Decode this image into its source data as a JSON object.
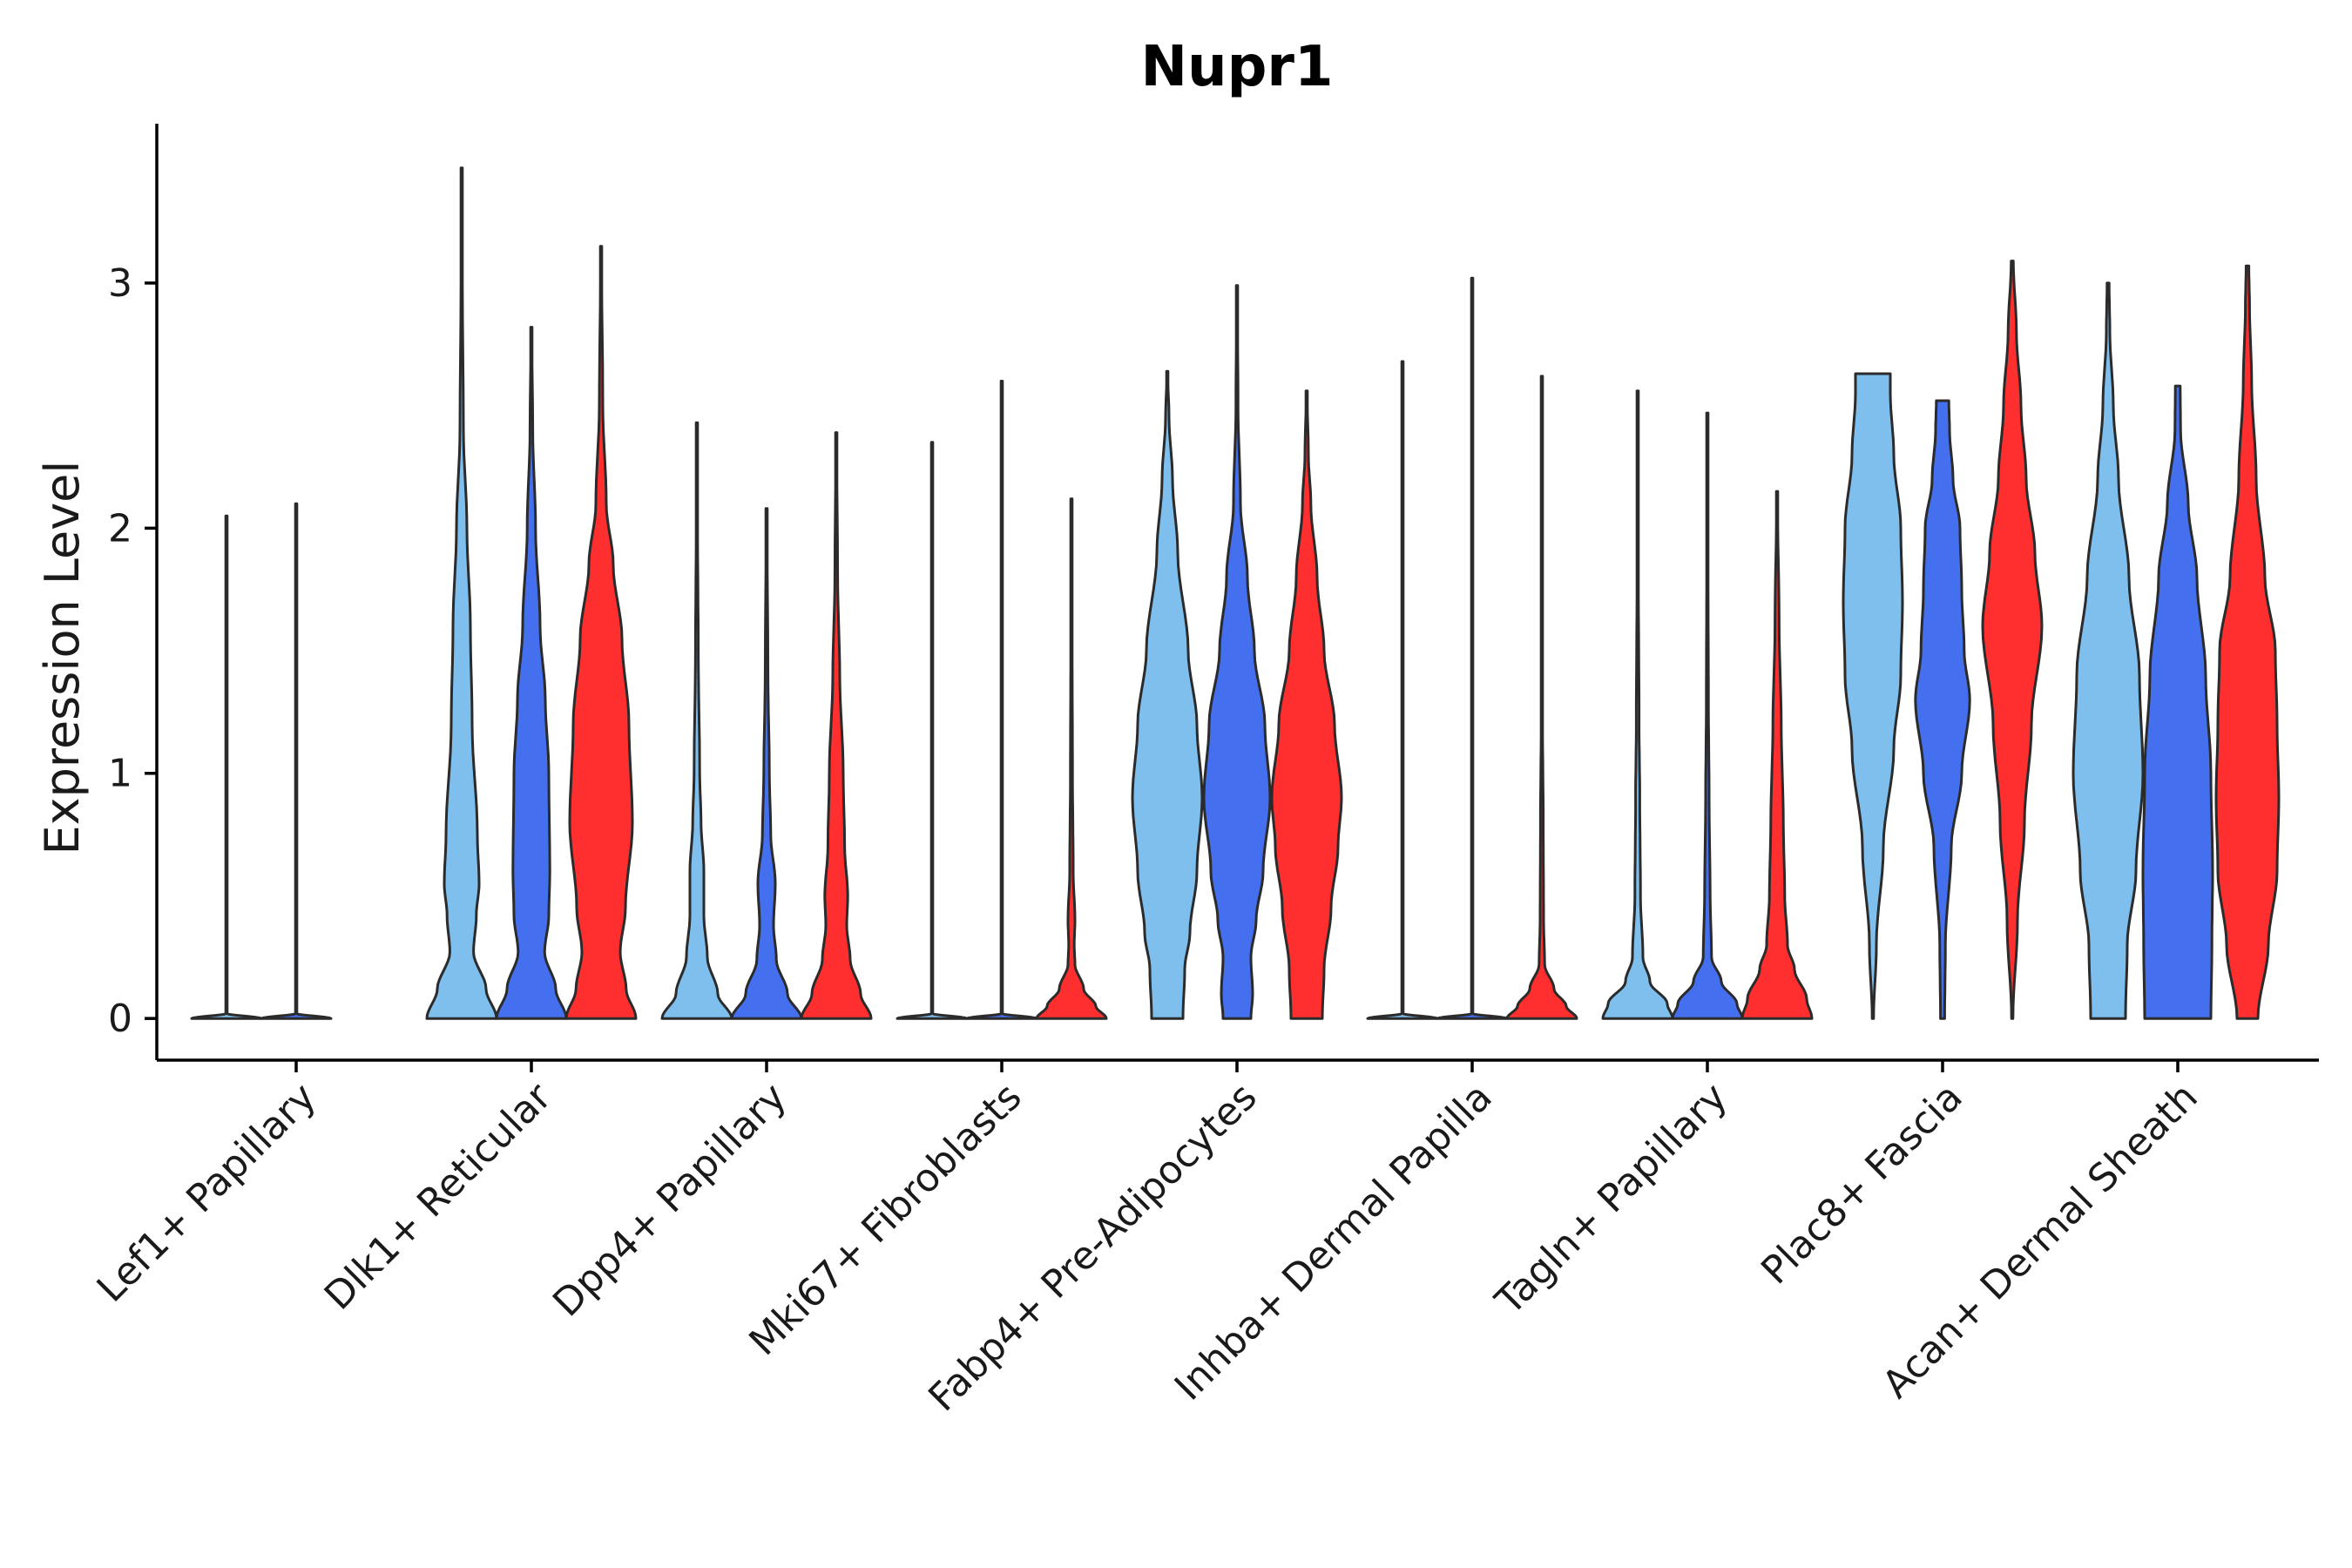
{
  "chart_data": {
    "type": "violin",
    "title": "Nupr1",
    "xlabel": "",
    "ylabel": "Expression Level",
    "ylim": [
      -0.17,
      3.65
    ],
    "yticks": [
      0,
      1,
      2,
      3
    ],
    "ytick_labels": [
      "0",
      "1",
      "2",
      "3"
    ],
    "groups_per_category": 3,
    "group_colors": [
      "#7fbfee",
      "#4470ef",
      "#ff2f2f"
    ],
    "categories": [
      "Lef1+ Papillary",
      "Dlk1+ Reticular",
      "Dpp4+ Papillary",
      "Mki67+ Fibroblasts",
      "Fabp4+ Pre-Adipocytes",
      "Inhba+ Dermal Papilla",
      "Tagln+ Papillary",
      "Plac8+ Fascia",
      "Acan+ Dermal Sheath"
    ],
    "violins": [
      {
        "category": "Lef1+ Papillary",
        "group": 0,
        "min": 0,
        "max": 2.05,
        "profile": [
          [
            0,
            1.0
          ],
          [
            0.02,
            0.005
          ],
          [
            0.3,
            0.002
          ],
          [
            2.05,
            0.002
          ]
        ]
      },
      {
        "category": "Lef1+ Papillary",
        "group": 1,
        "min": 0,
        "max": 2.1,
        "profile": [
          [
            0,
            1.0
          ],
          [
            0.02,
            0.005
          ],
          [
            0.3,
            0.002
          ],
          [
            2.1,
            0.002
          ]
        ]
      },
      {
        "category": "Dlk1+ Reticular",
        "group": 0,
        "min": 0,
        "max": 3.47,
        "profile": [
          [
            0,
            1.0
          ],
          [
            0.12,
            0.7
          ],
          [
            0.27,
            0.34
          ],
          [
            0.42,
            0.42
          ],
          [
            0.55,
            0.5
          ],
          [
            0.75,
            0.45
          ],
          [
            1.2,
            0.3
          ],
          [
            1.6,
            0.25
          ],
          [
            2.0,
            0.15
          ],
          [
            2.4,
            0.05
          ],
          [
            3.0,
            0.02
          ],
          [
            3.47,
            0.01
          ]
        ]
      },
      {
        "category": "Dlk1+ Reticular",
        "group": 1,
        "min": 0,
        "max": 2.82,
        "profile": [
          [
            0,
            1.0
          ],
          [
            0.12,
            0.7
          ],
          [
            0.27,
            0.38
          ],
          [
            0.42,
            0.5
          ],
          [
            0.6,
            0.53
          ],
          [
            1.0,
            0.5
          ],
          [
            1.3,
            0.4
          ],
          [
            1.6,
            0.25
          ],
          [
            2.0,
            0.12
          ],
          [
            2.4,
            0.04
          ],
          [
            2.82,
            0.01
          ]
        ]
      },
      {
        "category": "Dlk1+ Reticular",
        "group": 2,
        "min": 0,
        "max": 3.15,
        "profile": [
          [
            0,
            1.0
          ],
          [
            0.12,
            0.72
          ],
          [
            0.27,
            0.55
          ],
          [
            0.45,
            0.7
          ],
          [
            0.8,
            0.9
          ],
          [
            1.2,
            0.8
          ],
          [
            1.55,
            0.6
          ],
          [
            1.85,
            0.35
          ],
          [
            2.1,
            0.15
          ],
          [
            2.5,
            0.05
          ],
          [
            3.15,
            0.01
          ]
        ]
      },
      {
        "category": "Dpp4+ Papillary",
        "group": 0,
        "min": 0,
        "max": 2.43,
        "profile": [
          [
            0,
            1.0
          ],
          [
            0.1,
            0.6
          ],
          [
            0.25,
            0.3
          ],
          [
            0.42,
            0.2
          ],
          [
            0.6,
            0.2
          ],
          [
            0.8,
            0.12
          ],
          [
            1.0,
            0.08
          ],
          [
            1.5,
            0.04
          ],
          [
            2.0,
            0.02
          ],
          [
            2.43,
            0.01
          ]
        ]
      },
      {
        "category": "Dpp4+ Papillary",
        "group": 1,
        "min": 0,
        "max": 2.08,
        "profile": [
          [
            0,
            1.0
          ],
          [
            0.1,
            0.6
          ],
          [
            0.24,
            0.28
          ],
          [
            0.38,
            0.2
          ],
          [
            0.55,
            0.25
          ],
          [
            0.75,
            0.12
          ],
          [
            1.0,
            0.08
          ],
          [
            1.4,
            0.04
          ],
          [
            2.08,
            0.01
          ]
        ]
      },
      {
        "category": "Dpp4+ Papillary",
        "group": 2,
        "min": 0,
        "max": 2.39,
        "profile": [
          [
            0,
            1.0
          ],
          [
            0.1,
            0.7
          ],
          [
            0.24,
            0.4
          ],
          [
            0.38,
            0.3
          ],
          [
            0.5,
            0.33
          ],
          [
            0.7,
            0.24
          ],
          [
            1.0,
            0.2
          ],
          [
            1.4,
            0.1
          ],
          [
            1.8,
            0.04
          ],
          [
            2.39,
            0.01
          ]
        ]
      },
      {
        "category": "Mki67+ Fibroblasts",
        "group": 0,
        "min": 0,
        "max": 2.35,
        "profile": [
          [
            0,
            1.0
          ],
          [
            0.02,
            0.005
          ],
          [
            0.3,
            0.002
          ],
          [
            2.35,
            0.002
          ]
        ]
      },
      {
        "category": "Mki67+ Fibroblasts",
        "group": 1,
        "min": 0,
        "max": 2.6,
        "profile": [
          [
            0,
            1.0
          ],
          [
            0.02,
            0.005
          ],
          [
            0.3,
            0.002
          ],
          [
            2.6,
            0.002
          ]
        ]
      },
      {
        "category": "Mki67+ Fibroblasts",
        "group": 2,
        "min": 0,
        "max": 2.12,
        "profile": [
          [
            0,
            1.0
          ],
          [
            0.05,
            0.7
          ],
          [
            0.12,
            0.35
          ],
          [
            0.22,
            0.1
          ],
          [
            0.3,
            0.08
          ],
          [
            0.4,
            0.1
          ],
          [
            0.6,
            0.05
          ],
          [
            1.0,
            0.03
          ],
          [
            1.5,
            0.02
          ],
          [
            2.12,
            0.01
          ]
        ]
      },
      {
        "category": "Fabp4+ Pre-Adipocytes",
        "group": 0,
        "min": 0,
        "max": 2.64,
        "profile": [
          [
            0,
            0.45
          ],
          [
            0.2,
            0.5
          ],
          [
            0.35,
            0.65
          ],
          [
            0.6,
            0.85
          ],
          [
            0.9,
            1.0
          ],
          [
            1.2,
            0.85
          ],
          [
            1.5,
            0.6
          ],
          [
            1.9,
            0.3
          ],
          [
            2.2,
            0.15
          ],
          [
            2.45,
            0.05
          ],
          [
            2.64,
            0.01
          ]
        ]
      },
      {
        "category": "Fabp4+ Pre-Adipocytes",
        "group": 1,
        "min": 0,
        "max": 2.99,
        "profile": [
          [
            0,
            0.4
          ],
          [
            0.1,
            0.45
          ],
          [
            0.25,
            0.4
          ],
          [
            0.4,
            0.55
          ],
          [
            0.6,
            0.75
          ],
          [
            0.9,
            0.95
          ],
          [
            1.2,
            0.8
          ],
          [
            1.5,
            0.5
          ],
          [
            1.8,
            0.3
          ],
          [
            2.1,
            0.1
          ],
          [
            2.5,
            0.03
          ],
          [
            2.99,
            0.01
          ]
        ]
      },
      {
        "category": "Fabp4+ Pre-Adipocytes",
        "group": 2,
        "min": 0,
        "max": 2.56,
        "profile": [
          [
            0,
            0.45
          ],
          [
            0.2,
            0.5
          ],
          [
            0.45,
            0.7
          ],
          [
            0.7,
            0.9
          ],
          [
            0.9,
            1.0
          ],
          [
            1.2,
            0.8
          ],
          [
            1.5,
            0.5
          ],
          [
            1.8,
            0.3
          ],
          [
            2.1,
            0.12
          ],
          [
            2.3,
            0.05
          ],
          [
            2.56,
            0.01
          ]
        ]
      },
      {
        "category": "Inhba+ Dermal Papilla",
        "group": 0,
        "min": 0,
        "max": 2.68,
        "profile": [
          [
            0,
            1.0
          ],
          [
            0.02,
            0.005
          ],
          [
            0.3,
            0.002
          ],
          [
            2.68,
            0.002
          ]
        ]
      },
      {
        "category": "Inhba+ Dermal Papilla",
        "group": 1,
        "min": 0,
        "max": 3.02,
        "profile": [
          [
            0,
            1.0
          ],
          [
            0.02,
            0.005
          ],
          [
            0.3,
            0.002
          ],
          [
            3.02,
            0.002
          ]
        ]
      },
      {
        "category": "Inhba+ Dermal Papilla",
        "group": 2,
        "min": 0,
        "max": 2.62,
        "profile": [
          [
            0,
            1.0
          ],
          [
            0.05,
            0.7
          ],
          [
            0.12,
            0.35
          ],
          [
            0.22,
            0.08
          ],
          [
            0.4,
            0.05
          ],
          [
            0.8,
            0.04
          ],
          [
            1.2,
            0.02
          ],
          [
            2.62,
            0.01
          ]
        ]
      },
      {
        "category": "Tagln+ Papillary",
        "group": 0,
        "min": 0,
        "max": 2.56,
        "profile": [
          [
            0,
            1.0
          ],
          [
            0.06,
            0.85
          ],
          [
            0.15,
            0.35
          ],
          [
            0.25,
            0.15
          ],
          [
            0.5,
            0.08
          ],
          [
            0.9,
            0.06
          ],
          [
            1.2,
            0.04
          ],
          [
            1.8,
            0.02
          ],
          [
            2.56,
            0.01
          ]
        ]
      },
      {
        "category": "Tagln+ Papillary",
        "group": 1,
        "min": 0,
        "max": 2.47,
        "profile": [
          [
            0,
            1.0
          ],
          [
            0.06,
            0.85
          ],
          [
            0.15,
            0.4
          ],
          [
            0.25,
            0.12
          ],
          [
            0.5,
            0.08
          ],
          [
            0.9,
            0.05
          ],
          [
            1.3,
            0.03
          ],
          [
            1.8,
            0.02
          ],
          [
            2.47,
            0.01
          ]
        ]
      },
      {
        "category": "Tagln+ Papillary",
        "group": 2,
        "min": 0,
        "max": 2.15,
        "profile": [
          [
            0,
            1.0
          ],
          [
            0.08,
            0.85
          ],
          [
            0.2,
            0.5
          ],
          [
            0.3,
            0.3
          ],
          [
            0.5,
            0.22
          ],
          [
            0.8,
            0.18
          ],
          [
            1.2,
            0.12
          ],
          [
            1.6,
            0.06
          ],
          [
            2.15,
            0.01
          ]
        ]
      },
      {
        "category": "Plac8+ Fascia",
        "group": 0,
        "min": 0,
        "max": 2.63,
        "profile": [
          [
            0,
            0.02
          ],
          [
            0.3,
            0.1
          ],
          [
            0.7,
            0.3
          ],
          [
            1.1,
            0.6
          ],
          [
            1.4,
            0.8
          ],
          [
            1.7,
            0.85
          ],
          [
            2.0,
            0.8
          ],
          [
            2.3,
            0.6
          ],
          [
            2.55,
            0.5
          ],
          [
            2.63,
            0.5
          ]
        ]
      },
      {
        "category": "Plac8+ Fascia",
        "group": 1,
        "min": 0,
        "max": 2.52,
        "profile": [
          [
            0,
            0.06
          ],
          [
            0.3,
            0.08
          ],
          [
            0.7,
            0.25
          ],
          [
            1.0,
            0.55
          ],
          [
            1.3,
            0.78
          ],
          [
            1.5,
            0.62
          ],
          [
            1.75,
            0.55
          ],
          [
            2.0,
            0.5
          ],
          [
            2.2,
            0.3
          ],
          [
            2.4,
            0.2
          ],
          [
            2.52,
            0.18
          ]
        ]
      },
      {
        "category": "Plac8+ Fascia",
        "group": 2,
        "min": 0,
        "max": 3.09,
        "profile": [
          [
            0,
            0.02
          ],
          [
            0.4,
            0.15
          ],
          [
            0.8,
            0.35
          ],
          [
            1.2,
            0.55
          ],
          [
            1.6,
            0.85
          ],
          [
            1.9,
            0.65
          ],
          [
            2.2,
            0.4
          ],
          [
            2.5,
            0.25
          ],
          [
            2.8,
            0.12
          ],
          [
            3.09,
            0.03
          ]
        ]
      },
      {
        "category": "Acan+ Dermal Sheath",
        "group": 0,
        "min": 0,
        "max": 3.0,
        "profile": [
          [
            0,
            0.5
          ],
          [
            0.3,
            0.55
          ],
          [
            0.6,
            0.8
          ],
          [
            1.0,
            1.0
          ],
          [
            1.4,
            0.9
          ],
          [
            1.8,
            0.6
          ],
          [
            2.2,
            0.3
          ],
          [
            2.5,
            0.15
          ],
          [
            2.8,
            0.05
          ],
          [
            3.0,
            0.03
          ]
        ]
      },
      {
        "category": "Acan+ Dermal Sheath",
        "group": 1,
        "min": 0,
        "max": 2.58,
        "profile": [
          [
            0,
            0.95
          ],
          [
            0.3,
            0.98
          ],
          [
            0.6,
            1.0
          ],
          [
            1.0,
            0.95
          ],
          [
            1.4,
            0.8
          ],
          [
            1.8,
            0.55
          ],
          [
            2.1,
            0.3
          ],
          [
            2.4,
            0.08
          ],
          [
            2.58,
            0.07
          ]
        ]
      },
      {
        "category": "Acan+ Dermal Sheath",
        "group": 2,
        "min": 0,
        "max": 3.07,
        "profile": [
          [
            0,
            0.3
          ],
          [
            0.3,
            0.6
          ],
          [
            0.6,
            0.85
          ],
          [
            0.9,
            0.9
          ],
          [
            1.2,
            0.85
          ],
          [
            1.5,
            0.8
          ],
          [
            1.8,
            0.5
          ],
          [
            2.2,
            0.25
          ],
          [
            2.6,
            0.12
          ],
          [
            2.9,
            0.06
          ],
          [
            3.07,
            0.04
          ]
        ]
      }
    ]
  }
}
